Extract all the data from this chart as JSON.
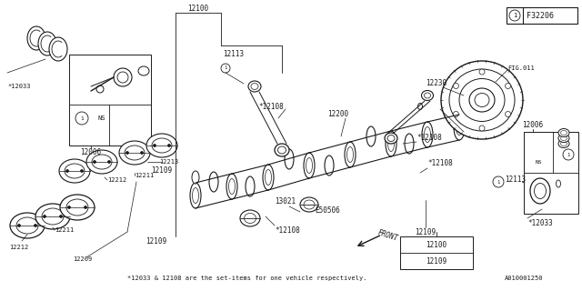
{
  "bg_color": "#ffffff",
  "line_color": "#1a1a1a",
  "fig_width": 6.4,
  "fig_height": 3.2,
  "dpi": 100,
  "frame_label": "F32206",
  "bottom_note": "*12033 & 12108 are the set-items for one vehicle respectively.",
  "bottom_code": "A010001250"
}
